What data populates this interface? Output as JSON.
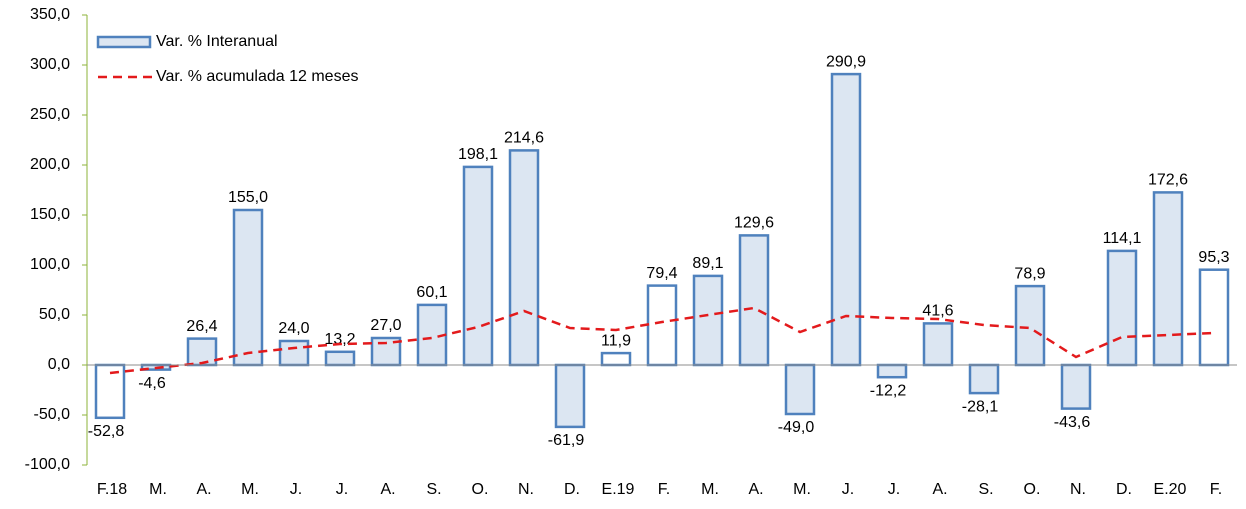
{
  "chart_data": {
    "type": "bar",
    "categories": [
      "F.18",
      "M.",
      "A.",
      "M.",
      "J.",
      "J.",
      "A.",
      "S.",
      "O.",
      "N.",
      "D.",
      "E.19",
      "F.",
      "M.",
      "A.",
      "M.",
      "J.",
      "J.",
      "A.",
      "S.",
      "O.",
      "N.",
      "D.",
      "E.20",
      "F."
    ],
    "ylim": [
      -100,
      350
    ],
    "yticks": [
      {
        "value": -100,
        "label": "-100,0"
      },
      {
        "value": -50,
        "label": "-50,0"
      },
      {
        "value": 0,
        "label": "0,0"
      },
      {
        "value": 50,
        "label": "50,0"
      },
      {
        "value": 100,
        "label": "100,0"
      },
      {
        "value": 150,
        "label": "150,0"
      },
      {
        "value": 200,
        "label": "200,0"
      },
      {
        "value": 250,
        "label": "250,0"
      },
      {
        "value": 300,
        "label": "300,0"
      },
      {
        "value": 350,
        "label": "350,0"
      }
    ],
    "legend": "top-left",
    "series": [
      {
        "name": "Var. % Interanual",
        "type": "bar",
        "color": "#dce6f2",
        "edge_color": "#4f81bd",
        "bar_colors": [
          "#ffffff",
          "#dce6f2",
          "#dce6f2",
          "#dce6f2",
          "#dce6f2",
          "#dce6f2",
          "#dce6f2",
          "#dce6f2",
          "#dce6f2",
          "#dce6f2",
          "#dce6f2",
          "#ffffff",
          "#ffffff",
          "#dce6f2",
          "#dce6f2",
          "#dce6f2",
          "#dce6f2",
          "#dce6f2",
          "#dce6f2",
          "#dce6f2",
          "#dce6f2",
          "#dce6f2",
          "#dce6f2",
          "#dce6f2",
          "#ffffff"
        ],
        "values": [
          -52.8,
          -4.6,
          26.4,
          155.0,
          24.0,
          13.2,
          27.0,
          60.1,
          198.1,
          214.6,
          -61.9,
          11.9,
          79.4,
          89.1,
          129.6,
          -49.0,
          290.9,
          -12.2,
          41.6,
          -28.1,
          78.9,
          -43.6,
          114.1,
          172.6,
          95.3
        ],
        "value_labels": [
          "-52,8",
          "-4,6",
          "26,4",
          "155,0",
          "24,0",
          "13,2",
          "27,0",
          "60,1",
          "198,1",
          "214,6",
          "-61,9",
          "11,9",
          "79,4",
          "89,1",
          "129,6",
          "-49,0",
          "290,9",
          "-12,2",
          "41,6",
          "-28,1",
          "78,9",
          "-43,6",
          "114,1",
          "172,6",
          "95,3"
        ]
      },
      {
        "name": "Var. % acumulada 12 meses",
        "type": "line",
        "color": "#e31a1c",
        "dashed": true,
        "values": [
          -8,
          -3,
          2,
          12,
          17,
          21,
          22,
          27,
          38,
          54,
          37,
          35,
          43,
          50,
          57,
          33,
          49,
          47,
          46,
          40,
          37,
          8,
          28,
          30,
          32
        ]
      }
    ]
  }
}
